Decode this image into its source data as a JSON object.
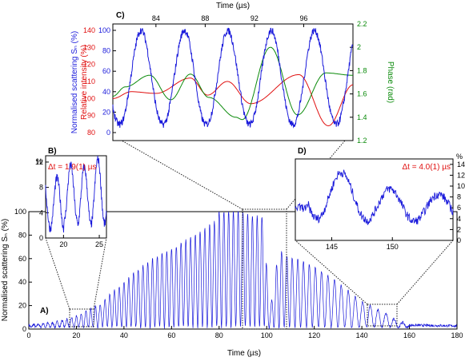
{
  "colors": {
    "blue": "#1a1adb",
    "red": "#e01010",
    "green": "#0a8a0a",
    "axis": "#000000",
    "dotted": "#222222"
  },
  "chart_data": [
    {
      "panel": "A",
      "type": "line",
      "panel_label": "A)",
      "xlabel": "Time (µs)",
      "ylabel": "Normalised scattering Sₙ (%)",
      "xlim": [
        0,
        180
      ],
      "ylim": [
        0,
        100
      ],
      "xticks": [
        "0",
        "20",
        "40",
        "60",
        "80",
        "100",
        "120",
        "140",
        "160",
        "180"
      ],
      "yticks": [
        "0",
        "20",
        "40",
        "60",
        "80",
        "100"
      ],
      "series": [
        {
          "color": "#1a1adb",
          "envelope": [
            [
              0,
              2
            ],
            [
              10,
              4
            ],
            [
              20,
              9
            ],
            [
              30,
              20
            ],
            [
              40,
              39
            ],
            [
              50,
              56
            ],
            [
              60,
              67
            ],
            [
              70,
              79
            ],
            [
              78,
              90
            ],
            [
              80,
              99
            ],
            [
              90,
              99
            ],
            [
              95,
              95
            ],
            [
              99,
              95
            ],
            [
              101,
              8
            ],
            [
              105,
              65
            ],
            [
              110,
              60
            ],
            [
              120,
              52
            ],
            [
              130,
              38
            ],
            [
              140,
              22
            ],
            [
              150,
              12
            ],
            [
              155,
              5
            ],
            [
              160,
              3
            ],
            [
              180,
              2
            ]
          ],
          "period_us": 2.0
        }
      ]
    },
    {
      "panel": "B",
      "type": "line",
      "panel_label": "B)",
      "annotation": "Δt = 1.9(1) µs",
      "yunit": "%",
      "xlim": [
        17.5,
        26
      ],
      "ylim": [
        0,
        13
      ],
      "xticks": [
        "20",
        "25"
      ],
      "yticks": [
        "0",
        "4",
        "8",
        "12"
      ],
      "series": [
        {
          "color": "#1a1adb",
          "peaks_x": [
            19.1,
            21.1,
            23.0,
            25.0
          ],
          "peak_y": [
            9.5,
            11.5,
            11.2,
            12.5
          ],
          "trough_y": [
            1.5,
            2.5,
            2.0,
            2.2
          ],
          "period_us": 1.9
        }
      ]
    },
    {
      "panel": "C",
      "type": "line",
      "panel_label": "C)",
      "xlabel": "Time (µs)",
      "ylabel_left_blue": "Normalised scattering Sₙ (%)",
      "ylabel_left_red": "Relative intensity (%)",
      "ylabel_right": "Phase (rad)",
      "xlim": [
        80.5,
        100
      ],
      "xticks": [
        "84",
        "88",
        "92",
        "96"
      ],
      "yticks_blue": [
        "0",
        "20",
        "40",
        "60",
        "80",
        "100"
      ],
      "yticks_red": [
        "80",
        "90",
        "100",
        "110",
        "120",
        "130",
        "140"
      ],
      "yticks_right": [
        "1.2",
        "1.4",
        "1.6",
        "1.8",
        "2",
        "2.2"
      ],
      "series": [
        {
          "color": "#1a1adb",
          "peaks_x": [
            82.8,
            86.3,
            89.9,
            93.4,
            96.9
          ],
          "peak_y": 100,
          "trough_y": 8
        },
        {
          "color": "#e01010",
          "peaks_x": [
            86.8,
            89.8,
            95.6
          ],
          "peak_y": [
            112,
            110,
            114
          ],
          "trough_y": [
            102,
            97,
            84
          ]
        },
        {
          "color": "#0a8a0a",
          "peaks_x": [
            83.5,
            86.8,
            93.3,
            97.8
          ],
          "peak_y_rad": [
            1.76,
            1.77,
            2.0,
            1.78
          ],
          "trough_y_rad": [
            1.55,
            1.5,
            1.35,
            1.42
          ]
        }
      ]
    },
    {
      "panel": "D",
      "type": "line",
      "panel_label": "D)",
      "annotation": "Δt = 4.0(1) µs",
      "yunit": "%",
      "xlim": [
        142,
        155
      ],
      "ylim": [
        0,
        15
      ],
      "xticks": [
        "145",
        "150"
      ],
      "yticks": [
        "0",
        "2",
        "4",
        "6",
        "8",
        "10",
        "12",
        "14"
      ],
      "series": [
        {
          "color": "#1a1adb",
          "peaks_x": [
            145.8,
            149.8,
            153.7
          ],
          "peak_y": [
            12.5,
            9.5,
            8.5
          ],
          "trough_y": [
            4,
            3.5,
            3.5
          ],
          "period_us": 4.0
        }
      ]
    }
  ]
}
